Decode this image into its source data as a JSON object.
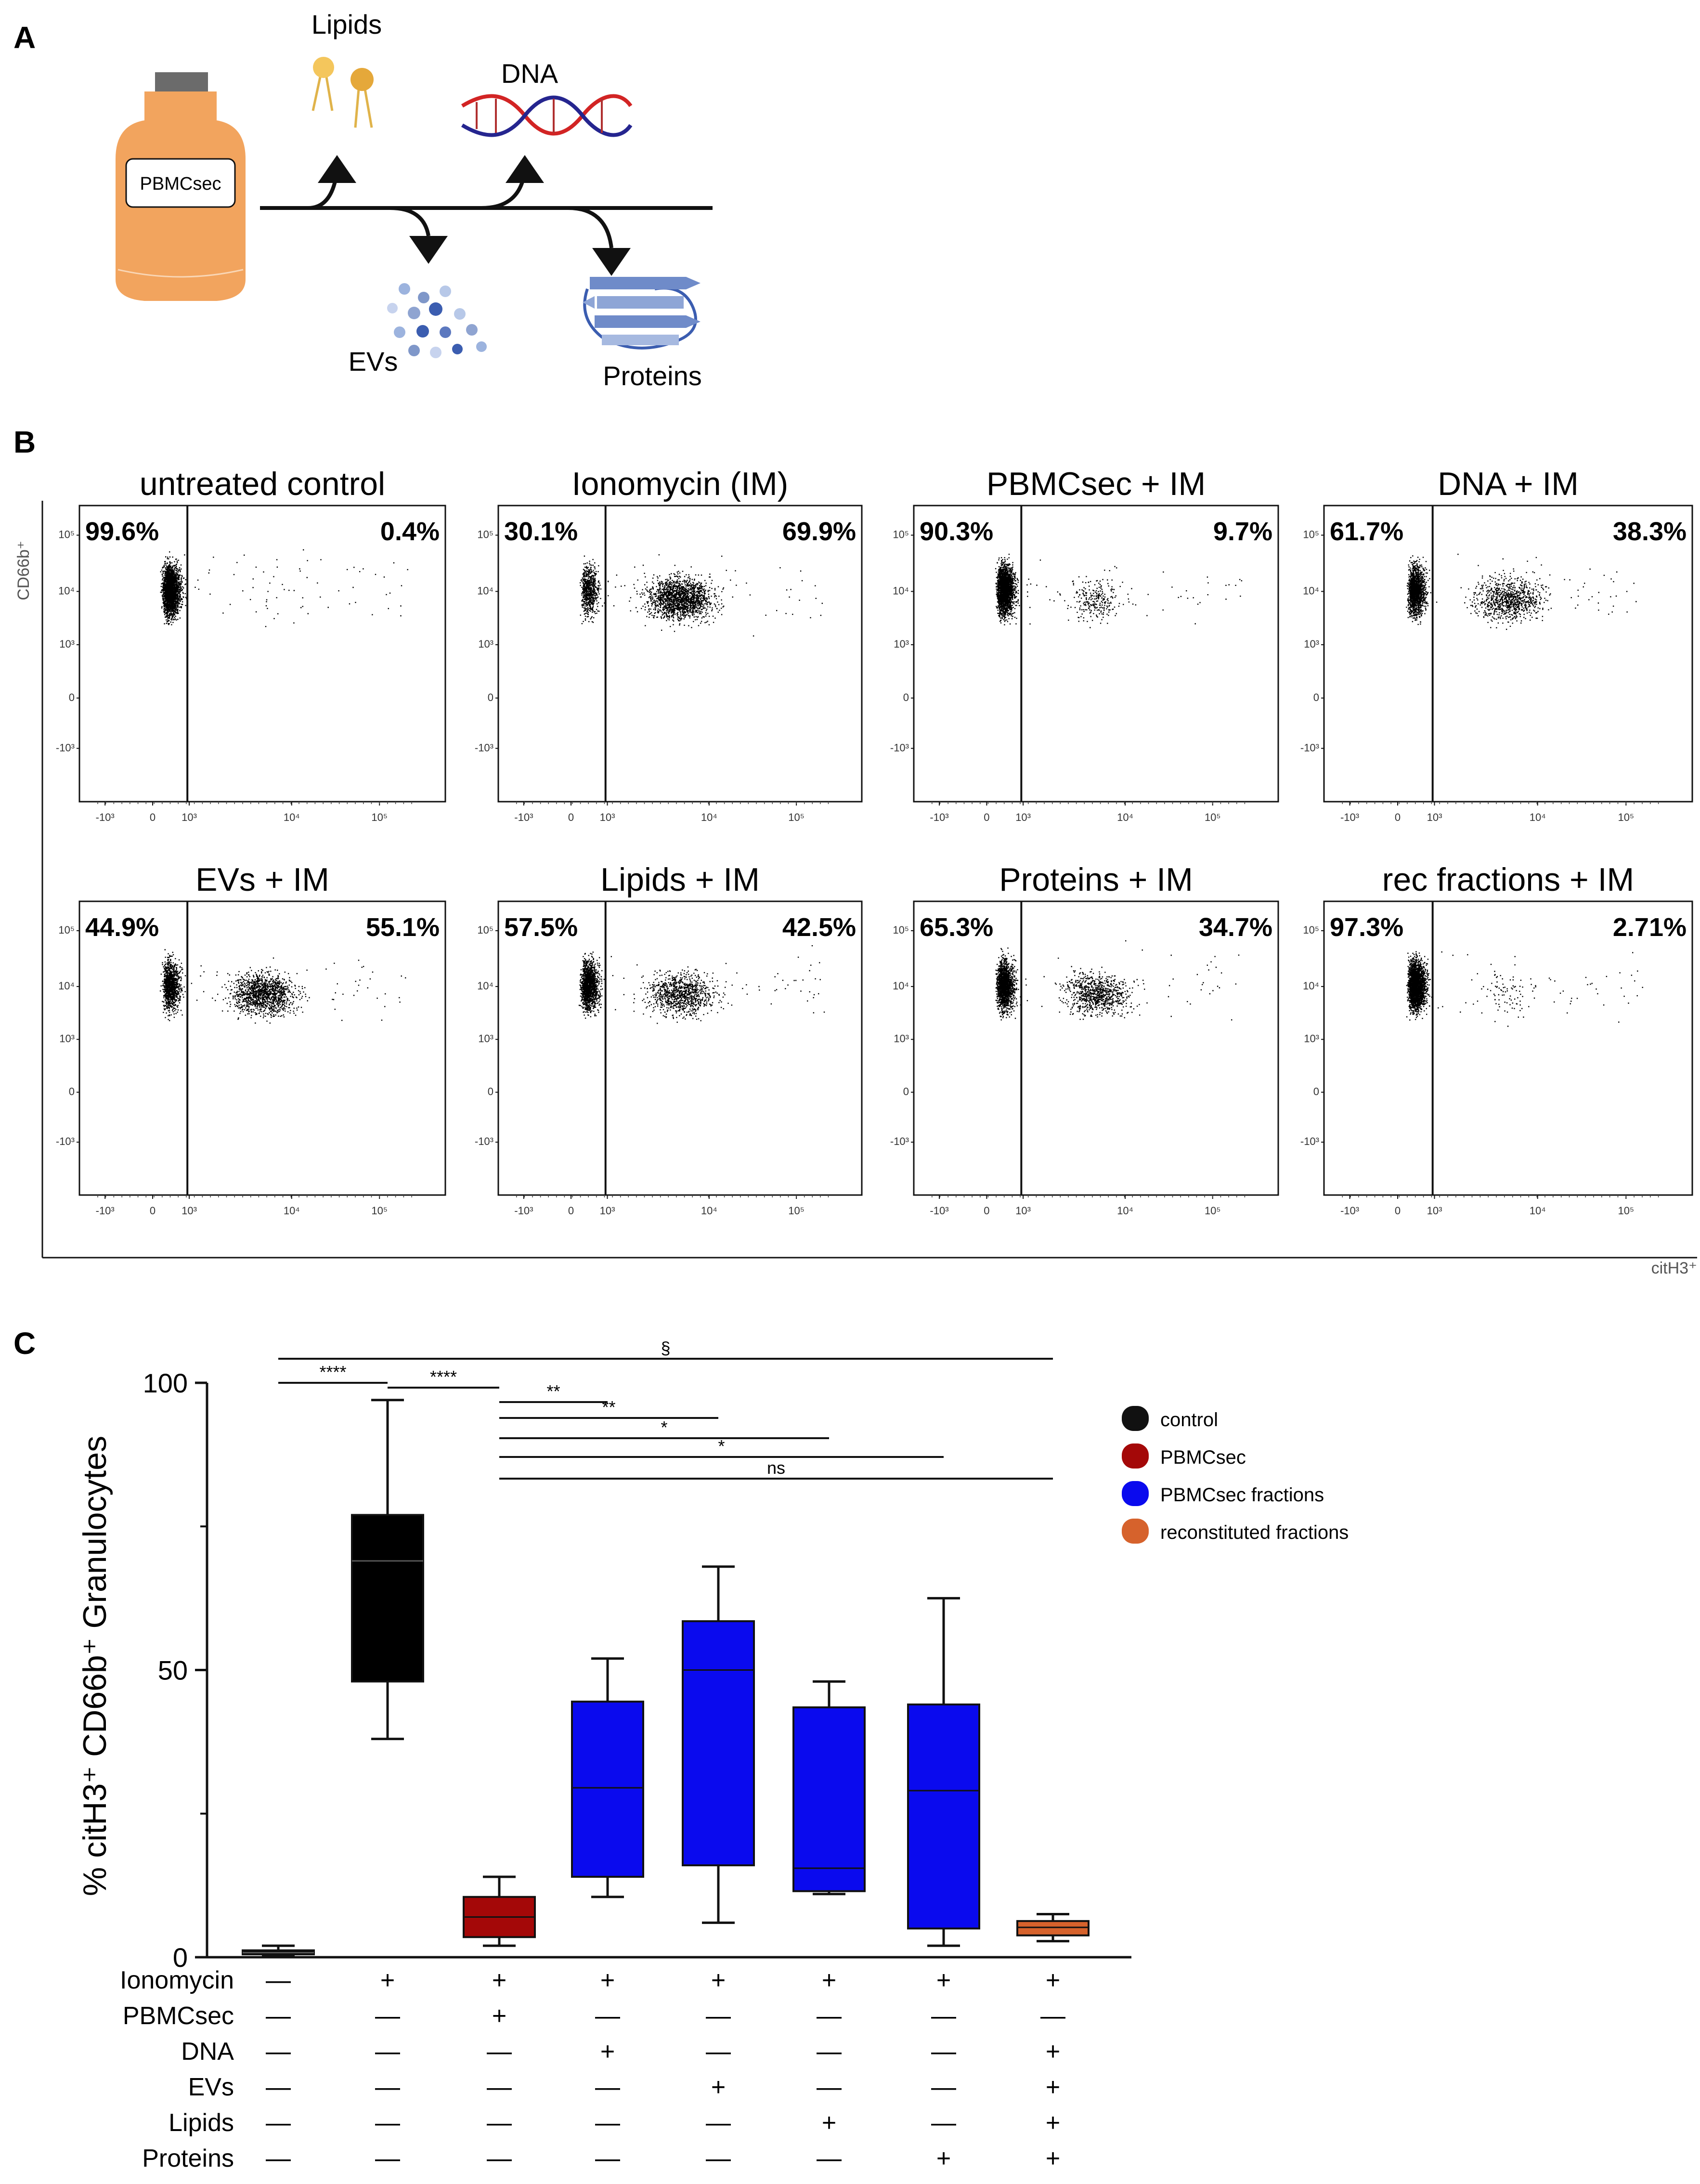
{
  "panels": {
    "a": "A",
    "b": "B",
    "c": "C"
  },
  "panel_a": {
    "bottle_label": "PBMCsec",
    "lipids": "Lipids",
    "dna": "DNA",
    "evs": "EVs",
    "proteins": "Proteins"
  },
  "panel_b": {
    "y_axis": "CD66b⁺",
    "x_axis": "citH3⁺",
    "y_ticks": [
      "10⁵",
      "10⁴",
      "10³",
      "0",
      "-10³"
    ],
    "x_ticks": [
      "-10³",
      "0",
      "10³",
      "10⁴",
      "10⁵"
    ],
    "plots": [
      {
        "title": "untreated control",
        "left": "99.6%",
        "right": "0.4%"
      },
      {
        "title": "Ionomycin (IM)",
        "left": "30.1%",
        "right": "69.9%"
      },
      {
        "title": "PBMCsec + IM",
        "left": "90.3%",
        "right": "9.7%"
      },
      {
        "title": "DNA + IM",
        "left": "61.7%",
        "right": "38.3%"
      },
      {
        "title": "EVs + IM",
        "left": "44.9%",
        "right": "55.1%"
      },
      {
        "title": "Lipids + IM",
        "left": "57.5%",
        "right": "42.5%"
      },
      {
        "title": "Proteins + IM",
        "left": "65.3%",
        "right": "34.7%"
      },
      {
        "title": "rec fractions + IM",
        "left": "97.3%",
        "right": "2.71%"
      }
    ]
  },
  "chart_data": {
    "type": "box",
    "ylabel": "% citH3⁺ CD66b⁺ Granulocytes",
    "ylim": [
      0,
      100
    ],
    "yticks": [
      0,
      50,
      100
    ],
    "boxes": [
      {
        "group": "control",
        "color": "#000000",
        "min": 0.3,
        "q1": 0.5,
        "median": 0.8,
        "q3": 1.2,
        "max": 2.0
      },
      {
        "group": "control",
        "color": "#000000",
        "min": 38,
        "q1": 48,
        "median": 69,
        "q3": 77,
        "max": 97
      },
      {
        "group": "PBMCsec",
        "color": "#a40808",
        "min": 2,
        "q1": 3.5,
        "median": 7,
        "q3": 10.5,
        "max": 14
      },
      {
        "group": "PBMCsec fractions",
        "color": "#0a0aee",
        "min": 10.5,
        "q1": 14,
        "median": 29.5,
        "q3": 44.5,
        "max": 52
      },
      {
        "group": "PBMCsec fractions",
        "color": "#0a0aee",
        "min": 6,
        "q1": 16,
        "median": 50,
        "q3": 58.5,
        "max": 68
      },
      {
        "group": "PBMCsec fractions",
        "color": "#0a0aee",
        "min": 11,
        "q1": 11.5,
        "median": 15.5,
        "q3": 43.5,
        "max": 48
      },
      {
        "group": "PBMCsec fractions",
        "color": "#0a0aee",
        "min": 2,
        "q1": 5,
        "median": 29,
        "q3": 44,
        "max": 62.5
      },
      {
        "group": "reconstituted fractions",
        "color": "#d6622c",
        "min": 2.8,
        "q1": 3.8,
        "median": 5.2,
        "q3": 6.3,
        "max": 7.5
      }
    ],
    "significance": [
      {
        "label": "§",
        "from": 1,
        "to": 8
      },
      {
        "label": "****",
        "from": 1,
        "to": 2
      },
      {
        "label": "****",
        "from": 2,
        "to": 3
      },
      {
        "label": "**",
        "from": 3,
        "to": 4
      },
      {
        "label": "**",
        "from": 3,
        "to": 5
      },
      {
        "label": "*",
        "from": 3,
        "to": 6
      },
      {
        "label": "*",
        "from": 3,
        "to": 7
      },
      {
        "label": "ns",
        "from": 3,
        "to": 8
      }
    ],
    "legend": [
      {
        "label": "control",
        "color": "#111111"
      },
      {
        "label": "PBMCsec",
        "color": "#a40808"
      },
      {
        "label": "PBMCsec fractions",
        "color": "#0a0aee"
      },
      {
        "label": "reconstituted fractions",
        "color": "#d6622c"
      }
    ],
    "treatment_table": [
      {
        "label": "Ionomycin",
        "values": [
          "—",
          "+",
          "+",
          "+",
          "+",
          "+",
          "+",
          "+"
        ]
      },
      {
        "label": "PBMCsec",
        "values": [
          "—",
          "—",
          "+",
          "—",
          "—",
          "—",
          "—",
          "—"
        ]
      },
      {
        "label": "DNA",
        "values": [
          "—",
          "—",
          "—",
          "+",
          "—",
          "—",
          "—",
          "+"
        ]
      },
      {
        "label": "EVs",
        "values": [
          "—",
          "—",
          "—",
          "—",
          "+",
          "—",
          "—",
          "+"
        ]
      },
      {
        "label": "Lipids",
        "values": [
          "—",
          "—",
          "—",
          "—",
          "—",
          "+",
          "—",
          "+"
        ]
      },
      {
        "label": "Proteins",
        "values": [
          "—",
          "—",
          "—",
          "—",
          "—",
          "—",
          "+",
          "+"
        ]
      }
    ]
  }
}
